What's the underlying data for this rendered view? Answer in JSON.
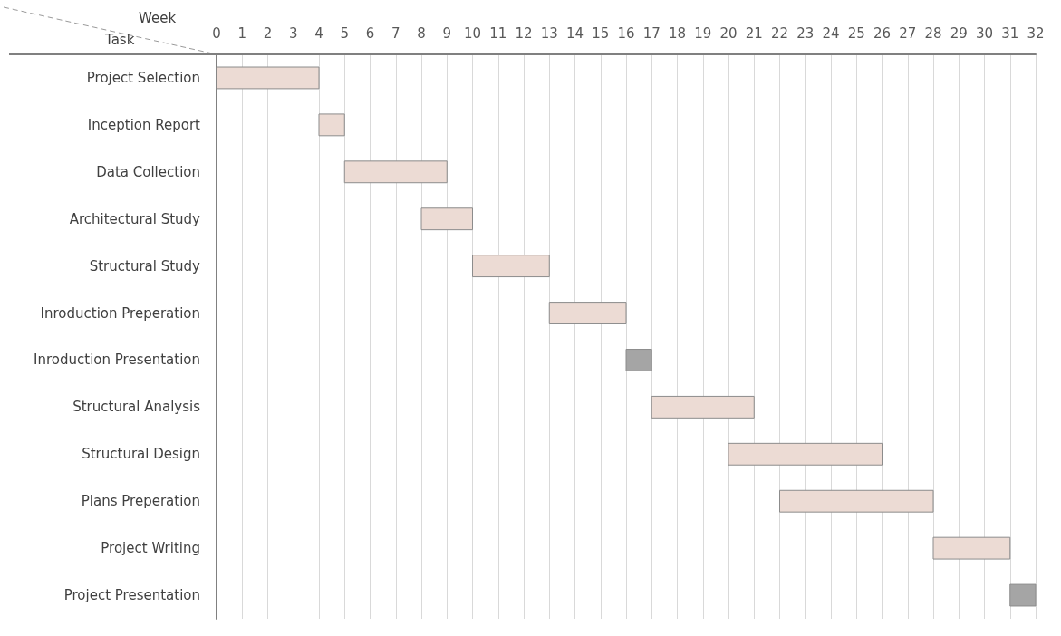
{
  "chart_data": {
    "type": "bar",
    "orientation": "horizontal",
    "xlabel": "Week",
    "ylabel": "Task",
    "categories": [
      "Project Selection",
      "Inception Report",
      "Data Collection",
      "Architectural Study",
      "Structural Study",
      "Inroduction Preperation",
      "Inroduction Presentation",
      "Structural Analysis",
      "Structural Design",
      "Plans Preperation",
      "Project Writing",
      "Project Presentation"
    ],
    "base": [
      0,
      4,
      5,
      8,
      10,
      13,
      16,
      17,
      20,
      22,
      28,
      31
    ],
    "values": [
      4,
      1,
      4,
      2,
      3,
      3,
      1,
      4,
      6,
      6,
      3,
      1
    ],
    "colors": [
      "#ecdbd4",
      "#ecdbd4",
      "#ecdbd4",
      "#ecdbd4",
      "#ecdbd4",
      "#ecdbd4",
      "#a5a5a5",
      "#ecdbd4",
      "#ecdbd4",
      "#ecdbd4",
      "#ecdbd4",
      "#a5a5a5"
    ],
    "xlim": [
      0,
      32
    ],
    "xticks": [
      0,
      1,
      2,
      3,
      4,
      5,
      6,
      7,
      8,
      9,
      10,
      11,
      12,
      13,
      14,
      15,
      16,
      17,
      18,
      19,
      20,
      21,
      22,
      23,
      24,
      25,
      26,
      27,
      28,
      29,
      30,
      31,
      32
    ],
    "grid": "x"
  }
}
